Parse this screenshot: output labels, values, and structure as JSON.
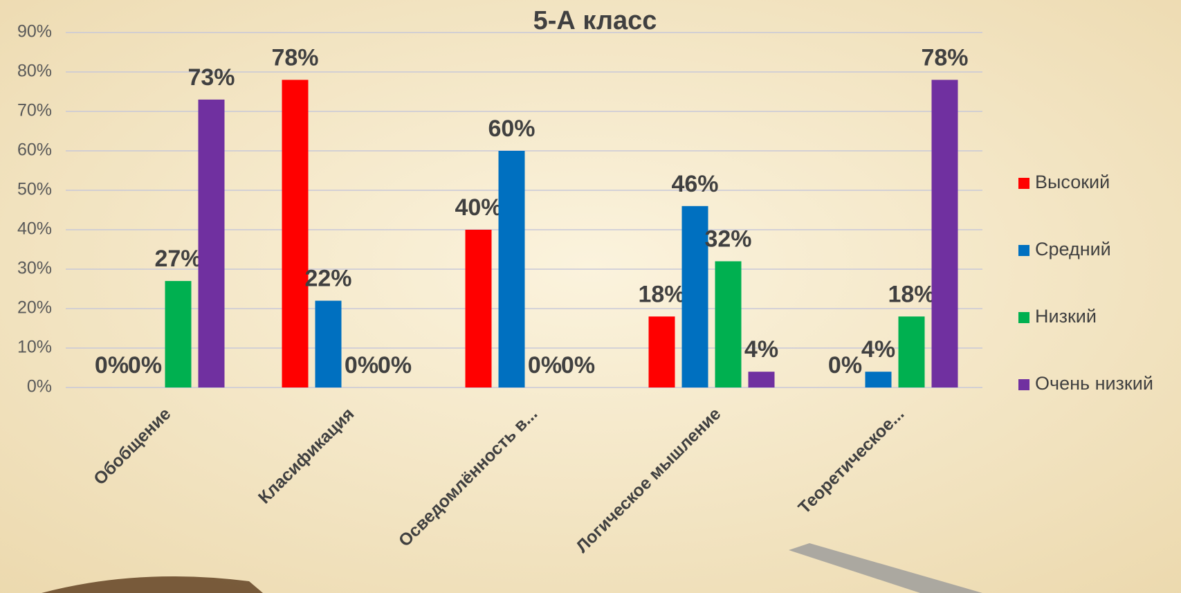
{
  "chart_data": {
    "type": "bar",
    "title": "5-А класс",
    "categories": [
      "Обобщение",
      "Класификация",
      "Осведомлённость в...",
      "Логическое мышление",
      "Теоретическое..."
    ],
    "series": [
      {
        "name": "Высокий",
        "color": "#ff0000",
        "values": [
          0,
          78,
          40,
          18,
          0
        ],
        "value_labels": [
          "0%",
          "78%",
          "40%",
          "18%",
          "0%"
        ]
      },
      {
        "name": "Средний",
        "color": "#0070c0",
        "values": [
          0,
          22,
          60,
          46,
          4
        ],
        "value_labels": [
          "0%",
          "22%",
          "60%",
          "46%",
          "4%"
        ]
      },
      {
        "name": "Низкий",
        "color": "#00b050",
        "values": [
          27,
          0,
          0,
          32,
          18
        ],
        "value_labels": [
          "27%",
          "0%",
          "0%",
          "32%",
          "18%"
        ]
      },
      {
        "name": "Очень низкий",
        "color": "#7030a0",
        "values": [
          73,
          0,
          0,
          4,
          78
        ],
        "value_labels": [
          "73%",
          "0%",
          "0%",
          "4%",
          "78%"
        ]
      }
    ],
    "ylim": [
      0,
      90
    ],
    "yticks": [
      {
        "value": 0,
        "label": "0%"
      },
      {
        "value": 10,
        "label": "10%"
      },
      {
        "value": 20,
        "label": "20%"
      },
      {
        "value": 30,
        "label": "30%"
      },
      {
        "value": 40,
        "label": "40%"
      },
      {
        "value": 50,
        "label": "50%"
      },
      {
        "value": 60,
        "label": "60%"
      },
      {
        "value": 70,
        "label": "70%"
      },
      {
        "value": 80,
        "label": "80%"
      },
      {
        "value": 90,
        "label": "90%"
      }
    ],
    "grid": true,
    "legend": "right"
  }
}
